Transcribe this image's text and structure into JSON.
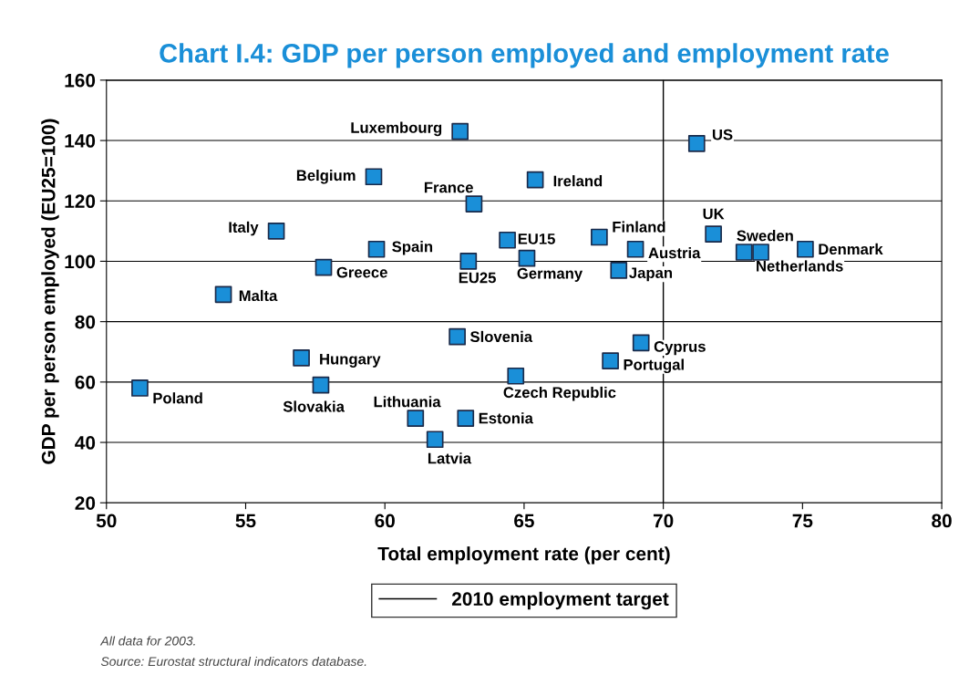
{
  "chart_data": {
    "type": "scatter",
    "title": "Chart I.4: GDP per person employed and employment rate",
    "xlabel": "Total employment rate (per cent)",
    "ylabel": "GDP per person employed (EU25=100)",
    "series": [
      {
        "color": "#1a8fd8",
        "x": [
          62.7,
          71.2,
          59.6,
          65.4,
          63.2,
          56.1,
          71.8,
          67.7,
          64.4,
          59.7,
          69.0,
          72.9,
          75.1,
          73.5,
          65.1,
          63.0,
          57.8,
          68.4,
          54.2,
          62.6,
          69.2,
          57.0,
          68.1,
          64.7,
          57.7,
          51.2,
          61.1,
          62.9,
          61.8
        ],
        "values": [
          143,
          139,
          128,
          127,
          119,
          110,
          109,
          108,
          107,
          104,
          104,
          103,
          104,
          103,
          101,
          100,
          98,
          97,
          89,
          75,
          73,
          68,
          67,
          62,
          59,
          58,
          48,
          48,
          41
        ]
      }
    ],
    "annotations": [
      {
        "text": "Luxembourg",
        "x": 62.7,
        "y": 143
      },
      {
        "text": "US",
        "x": 71.2,
        "y": 139
      },
      {
        "text": "Belgium",
        "x": 59.6,
        "y": 128
      },
      {
        "text": "Ireland",
        "x": 65.4,
        "y": 127
      },
      {
        "text": "France",
        "x": 63.2,
        "y": 119
      },
      {
        "text": "Italy",
        "x": 56.1,
        "y": 110
      },
      {
        "text": "UK",
        "x": 71.8,
        "y": 109
      },
      {
        "text": "Finland",
        "x": 67.7,
        "y": 108
      },
      {
        "text": "EU15",
        "x": 64.4,
        "y": 107
      },
      {
        "text": "Spain",
        "x": 59.7,
        "y": 104
      },
      {
        "text": "Austria",
        "x": 69.0,
        "y": 104
      },
      {
        "text": "Sweden",
        "x": 72.9,
        "y": 103
      },
      {
        "text": "Denmark",
        "x": 75.1,
        "y": 104
      },
      {
        "text": "Netherlands",
        "x": 73.5,
        "y": 103
      },
      {
        "text": "Germany",
        "x": 65.1,
        "y": 101
      },
      {
        "text": "EU25",
        "x": 63.0,
        "y": 100
      },
      {
        "text": "Greece",
        "x": 57.8,
        "y": 98
      },
      {
        "text": "Japan",
        "x": 68.4,
        "y": 97
      },
      {
        "text": "Malta",
        "x": 54.2,
        "y": 89
      },
      {
        "text": "Slovenia",
        "x": 62.6,
        "y": 75
      },
      {
        "text": "Cyprus",
        "x": 69.2,
        "y": 73
      },
      {
        "text": "Hungary",
        "x": 57.0,
        "y": 68
      },
      {
        "text": "Portugal",
        "x": 68.1,
        "y": 67
      },
      {
        "text": "Czech Republic",
        "x": 64.7,
        "y": 62
      },
      {
        "text": "Slovakia",
        "x": 57.7,
        "y": 59
      },
      {
        "text": "Poland",
        "x": 51.2,
        "y": 58
      },
      {
        "text": "Lithuania",
        "x": 61.1,
        "y": 48
      },
      {
        "text": "Estonia",
        "x": 62.9,
        "y": 48
      },
      {
        "text": "Latvia",
        "x": 61.8,
        "y": 41
      },
      "All data for 2003.",
      "Source: Eurostat structural indicators database."
    ],
    "ref_lines": [
      {
        "axis": "x",
        "value": 70,
        "label": "2010 employment target",
        "color": "#000000",
        "line_style": "solid"
      }
    ],
    "xlim": [
      50,
      80
    ],
    "xticks": [
      50,
      55,
      60,
      65,
      70,
      75,
      80
    ],
    "ylim": [
      20,
      160
    ],
    "yticks": [
      20,
      40,
      60,
      80,
      100,
      120,
      140,
      160
    ],
    "grid": "y",
    "legend": "bottom",
    "marker": "square"
  }
}
